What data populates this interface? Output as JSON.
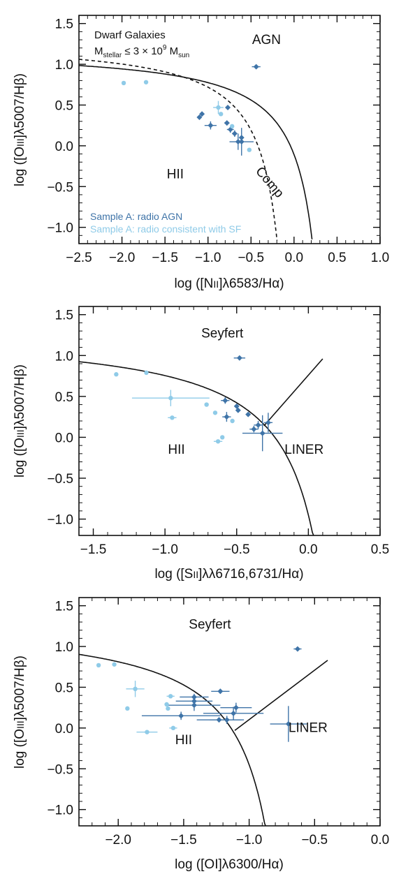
{
  "colors": {
    "agn": "#3f74a8",
    "sf": "#8fcbe8",
    "axis": "#111111"
  },
  "chart_data": [
    {
      "type": "scatter",
      "xlabel_parts": [
        "log  ([N",
        "II",
        "]λ6583/Hα)"
      ],
      "ylabel_parts": [
        "log  ([O",
        "III",
        "]λ5007/Hβ)"
      ],
      "xlim": [
        -2.5,
        1.0
      ],
      "ylim": [
        -1.2,
        1.6
      ],
      "xticks": [
        -2.5,
        -2.0,
        -1.5,
        -1.0,
        -0.5,
        0.0,
        0.5,
        1.0
      ],
      "xtick_labels": [
        "−2.5",
        "−2.0",
        "−1.5",
        "−1.0",
        "−0.5",
        "0.0",
        "0.5",
        "1.0"
      ],
      "yticks": [
        -1.0,
        -0.5,
        0.0,
        0.5,
        1.0,
        1.5
      ],
      "ytick_labels": [
        "−1.0",
        "−0.5",
        "0.0",
        "0.5",
        "1.0",
        "1.5"
      ],
      "title_lines": [
        "Dwarf Galaxies",
        "Mₛₜₑₗₗₐᵣ ≤ 3 × 10⁹ Mₛᵤₙ"
      ],
      "title_line1": "Dwarf Galaxies",
      "title_line2_parts": [
        "M",
        "stellar",
        " ≤ 3 × 10",
        "9",
        " M",
        "sun"
      ],
      "regions": [
        {
          "label": "AGN",
          "x": -0.32,
          "y": 1.25,
          "rotate": 0
        },
        {
          "label": "HII",
          "x": -1.38,
          "y": -0.4,
          "rotate": 0
        },
        {
          "label": "Comp",
          "x": -0.32,
          "y": -0.48,
          "rotate": 50
        }
      ],
      "legend": [
        {
          "label": "Sample A: radio AGN",
          "series": "agn"
        },
        {
          "label": "Sample A: radio consistent with SF",
          "series": "sf"
        }
      ],
      "curves": [
        {
          "name": "kewley",
          "dash": false,
          "func": "k01_nii"
        },
        {
          "name": "kauffmann",
          "dash": true,
          "func": "k03_nii"
        }
      ],
      "series": [
        {
          "key": "agn",
          "points": [
            {
              "x": -0.44,
              "y": 0.97,
              "xerr": 0.05,
              "yerr": 0.02
            },
            {
              "x": -1.1,
              "y": 0.35,
              "xerr": 0.0,
              "yerr": 0.0
            },
            {
              "x": -1.07,
              "y": 0.39,
              "xerr": 0.02,
              "yerr": 0.02
            },
            {
              "x": -0.97,
              "y": 0.25,
              "xerr": 0.07,
              "yerr": 0.05
            },
            {
              "x": -0.78,
              "y": 0.28,
              "xerr": 0.03,
              "yerr": 0.03
            },
            {
              "x": -0.74,
              "y": 0.2,
              "xerr": 0.04,
              "yerr": 0.04
            },
            {
              "x": -0.69,
              "y": 0.15,
              "xerr": 0.03,
              "yerr": 0.04
            },
            {
              "x": -0.65,
              "y": 0.05,
              "xerr": 0.02,
              "yerr": 0.1
            },
            {
              "x": -0.61,
              "y": 0.1,
              "xerr": 0.02,
              "yerr": 0.02
            },
            {
              "x": -0.61,
              "y": 0.05,
              "xerr": 0.14,
              "yerr": 0.17
            },
            {
              "x": -0.77,
              "y": 0.47,
              "xerr": 0.0,
              "yerr": 0.0
            }
          ]
        },
        {
          "key": "sf",
          "points": [
            {
              "x": -1.98,
              "y": 0.77,
              "xerr": 0.0,
              "yerr": 0.0
            },
            {
              "x": -1.72,
              "y": 0.78,
              "xerr": 0.0,
              "yerr": 0.0
            },
            {
              "x": -0.88,
              "y": 0.47,
              "xerr": 0.06,
              "yerr": 0.08
            },
            {
              "x": -0.85,
              "y": 0.39,
              "xerr": 0.0,
              "yerr": 0.0
            },
            {
              "x": -0.72,
              "y": 0.24,
              "xerr": 0.0,
              "yerr": 0.0
            },
            {
              "x": -0.52,
              "y": -0.05,
              "xerr": 0.0,
              "yerr": 0.0
            }
          ]
        }
      ]
    },
    {
      "type": "scatter",
      "xlabel_parts": [
        "log  ([S",
        "II",
        "]λλ6716,6731/Hα)"
      ],
      "ylabel_parts": [
        "log  ([O",
        "III",
        "]λ5007/Hβ)"
      ],
      "xlim": [
        -1.6,
        0.5
      ],
      "ylim": [
        -1.2,
        1.6
      ],
      "xticks": [
        -1.5,
        -1.0,
        -0.5,
        0.0,
        0.5
      ],
      "xtick_labels": [
        "−1.5",
        "−1.0",
        "−0.5",
        "0.0",
        "0.5"
      ],
      "yticks": [
        -1.0,
        -0.5,
        0.0,
        0.5,
        1.0,
        1.5
      ],
      "ytick_labels": [
        "−1.0",
        "−0.5",
        "0.0",
        "0.5",
        "1.0",
        "1.5"
      ],
      "regions": [
        {
          "label": "Seyfert",
          "x": -0.6,
          "y": 1.22,
          "rotate": 0
        },
        {
          "label": "HII",
          "x": -0.92,
          "y": -0.2,
          "rotate": 0
        },
        {
          "label": "LINER",
          "x": -0.03,
          "y": -0.2,
          "rotate": 0
        }
      ],
      "curves": [
        {
          "name": "kewley",
          "dash": false,
          "func": "k01_sii"
        },
        {
          "name": "seyfert-liner",
          "dash": false,
          "func": "line_sii"
        }
      ],
      "series": [
        {
          "key": "agn",
          "points": [
            {
              "x": -0.48,
              "y": 0.97,
              "xerr": 0.04,
              "yerr": 0.02
            },
            {
              "x": -0.58,
              "y": 0.45,
              "xerr": 0.03,
              "yerr": 0.04
            },
            {
              "x": -0.57,
              "y": 0.25,
              "xerr": 0.03,
              "yerr": 0.06
            },
            {
              "x": -0.5,
              "y": 0.38,
              "xerr": 0.0,
              "yerr": 0.0
            },
            {
              "x": -0.49,
              "y": 0.33,
              "xerr": 0.0,
              "yerr": 0.0
            },
            {
              "x": -0.42,
              "y": 0.28,
              "xerr": 0.0,
              "yerr": 0.0
            },
            {
              "x": -0.38,
              "y": 0.1,
              "xerr": 0.03,
              "yerr": 0.04
            },
            {
              "x": -0.35,
              "y": 0.15,
              "xerr": 0.03,
              "yerr": 0.05
            },
            {
              "x": -0.28,
              "y": 0.18,
              "xerr": 0.03,
              "yerr": 0.12
            },
            {
              "x": -0.32,
              "y": 0.05,
              "xerr": 0.14,
              "yerr": 0.22
            }
          ]
        },
        {
          "key": "sf",
          "points": [
            {
              "x": -1.34,
              "y": 0.77,
              "xerr": 0.0,
              "yerr": 0.0
            },
            {
              "x": -1.13,
              "y": 0.79,
              "xerr": 0.0,
              "yerr": 0.0
            },
            {
              "x": -0.96,
              "y": 0.48,
              "xerr": 0.27,
              "yerr": 0.1
            },
            {
              "x": -0.95,
              "y": 0.24,
              "xerr": 0.03,
              "yerr": 0.0
            },
            {
              "x": -0.71,
              "y": 0.4,
              "xerr": 0.0,
              "yerr": 0.0
            },
            {
              "x": -0.65,
              "y": 0.3,
              "xerr": 0.0,
              "yerr": 0.0
            },
            {
              "x": -0.63,
              "y": -0.05,
              "xerr": 0.03,
              "yerr": 0.02
            },
            {
              "x": -0.6,
              "y": 0.0,
              "xerr": 0.0,
              "yerr": 0.0
            },
            {
              "x": -0.53,
              "y": 0.2,
              "xerr": 0.0,
              "yerr": 0.0
            }
          ]
        }
      ]
    },
    {
      "type": "scatter",
      "xlabel_parts": [
        "log  ([OI]λ6300/Hα)"
      ],
      "ylabel_parts": [
        "log  ([O",
        "III",
        "]λ5007/Hβ)"
      ],
      "xlim": [
        -2.3,
        0.0
      ],
      "ylim": [
        -1.2,
        1.6
      ],
      "xticks": [
        -2.0,
        -1.5,
        -1.0,
        -0.5,
        0.0
      ],
      "xtick_labels": [
        "−2.0",
        "−1.5",
        "−1.0",
        "−0.5",
        "0.0"
      ],
      "yticks": [
        -1.0,
        -0.5,
        0.0,
        0.5,
        1.0,
        1.5
      ],
      "ytick_labels": [
        "−1.0",
        "−0.5",
        "0.0",
        "0.5",
        "1.0",
        "1.5"
      ],
      "regions": [
        {
          "label": "Seyfert",
          "x": -1.3,
          "y": 1.22,
          "rotate": 0
        },
        {
          "label": "HII",
          "x": -1.5,
          "y": -0.2,
          "rotate": 0
        },
        {
          "label": "LINER",
          "x": -0.55,
          "y": -0.05,
          "rotate": 0
        }
      ],
      "curves": [
        {
          "name": "kewley",
          "dash": false,
          "func": "k01_oi"
        },
        {
          "name": "seyfert-liner",
          "dash": false,
          "func": "line_oi"
        }
      ],
      "series": [
        {
          "key": "agn",
          "points": [
            {
              "x": -0.63,
              "y": 0.97,
              "xerr": 0.03,
              "yerr": 0.02
            },
            {
              "x": -1.42,
              "y": 0.38,
              "xerr": 0.11,
              "yerr": 0.04
            },
            {
              "x": -1.42,
              "y": 0.33,
              "xerr": 0.14,
              "yerr": 0.05
            },
            {
              "x": -1.42,
              "y": 0.28,
              "xerr": 0.2,
              "yerr": 0.07
            },
            {
              "x": -1.52,
              "y": 0.15,
              "xerr": 0.3,
              "yerr": 0.05
            },
            {
              "x": -1.22,
              "y": 0.45,
              "xerr": 0.07,
              "yerr": 0.03
            },
            {
              "x": -1.23,
              "y": 0.1,
              "xerr": 0.17,
              "yerr": 0.03
            },
            {
              "x": -1.17,
              "y": 0.1,
              "xerr": 0.13,
              "yerr": 0.05
            },
            {
              "x": -1.12,
              "y": 0.18,
              "xerr": 0.23,
              "yerr": 0.08
            },
            {
              "x": -1.1,
              "y": 0.25,
              "xerr": 0.12,
              "yerr": 0.06
            },
            {
              "x": -0.7,
              "y": 0.05,
              "xerr": 0.14,
              "yerr": 0.22
            }
          ]
        },
        {
          "key": "sf",
          "points": [
            {
              "x": -2.15,
              "y": 0.77,
              "xerr": 0.0,
              "yerr": 0.0
            },
            {
              "x": -2.03,
              "y": 0.78,
              "xerr": 0.0,
              "yerr": 0.0
            },
            {
              "x": -1.87,
              "y": 0.48,
              "xerr": 0.07,
              "yerr": 0.1
            },
            {
              "x": -1.93,
              "y": 0.24,
              "xerr": 0.0,
              "yerr": 0.0
            },
            {
              "x": -1.6,
              "y": 0.39,
              "xerr": 0.03,
              "yerr": 0.0
            },
            {
              "x": -1.63,
              "y": 0.29,
              "xerr": 0.0,
              "yerr": 0.0
            },
            {
              "x": -1.62,
              "y": 0.24,
              "xerr": 0.0,
              "yerr": 0.0
            },
            {
              "x": -1.58,
              "y": 0.0,
              "xerr": 0.03,
              "yerr": 0.0
            },
            {
              "x": -1.78,
              "y": -0.05,
              "xerr": 0.08,
              "yerr": 0.02
            }
          ]
        }
      ]
    }
  ]
}
